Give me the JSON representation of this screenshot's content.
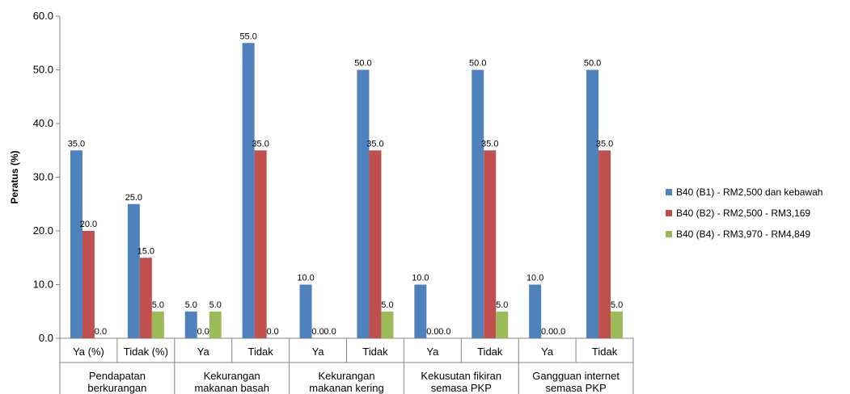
{
  "chart_data": {
    "type": "bar",
    "ylabel": "Peratus (%)",
    "ylim": [
      0,
      60
    ],
    "yticks": [
      "0.0",
      "10.0",
      "20.0",
      "30.0",
      "40.0",
      "50.0",
      "60.0"
    ],
    "grid": false,
    "legend_position": "right",
    "categories": [
      "Ya (%)",
      "Tidak (%)",
      "Ya",
      "Tidak",
      "Ya",
      "Tidak",
      "Ya",
      "Tidak",
      "Ya",
      "Tidak"
    ],
    "groups": [
      {
        "label_lines": [
          "Pendapatan",
          "berkurangan"
        ]
      },
      {
        "label_lines": [
          "Kekurangan",
          "makanan basah"
        ]
      },
      {
        "label_lines": [
          "Kekurangan",
          "makanan kering"
        ]
      },
      {
        "label_lines": [
          "Kekusutan fikiran",
          "semasa PKP"
        ]
      },
      {
        "label_lines": [
          "Gangguan internet",
          "semasa PKP"
        ]
      }
    ],
    "series": [
      {
        "name": "B40 (B1) - RM2,500 dan kebawah",
        "color": "#4F81BD",
        "values": [
          35.0,
          25.0,
          5.0,
          55.0,
          10.0,
          50.0,
          10.0,
          50.0,
          10.0,
          50.0
        ],
        "labels": [
          "35.0",
          "25.0",
          "5.0",
          "55.0",
          "10.0",
          "50.0",
          "10.0",
          "50.0",
          "10.0",
          "50.0"
        ]
      },
      {
        "name": "B40 (B2) - RM2,500 - RM3,169",
        "color": "#C0504D",
        "values": [
          20.0,
          15.0,
          0.0,
          35.0,
          0.0,
          35.0,
          0.0,
          35.0,
          0.0,
          35.0
        ],
        "labels": [
          "20.0",
          "15.0",
          "0.0",
          "35.0",
          "0.0",
          "35.0",
          "0.0",
          "35.0",
          "0.0",
          "35.0"
        ]
      },
      {
        "name": "B40 (B4) - RM3,970 - RM4,849",
        "color": "#9BBB59",
        "values": [
          0.0,
          5.0,
          5.0,
          0.0,
          0.0,
          5.0,
          0.0,
          5.0,
          0.0,
          5.0
        ],
        "labels": [
          "0.0",
          "5.0",
          "5.0",
          "0.0",
          "0.0",
          "5.0",
          "0.0",
          "5.0",
          "0.0",
          "5.0"
        ]
      }
    ]
  }
}
